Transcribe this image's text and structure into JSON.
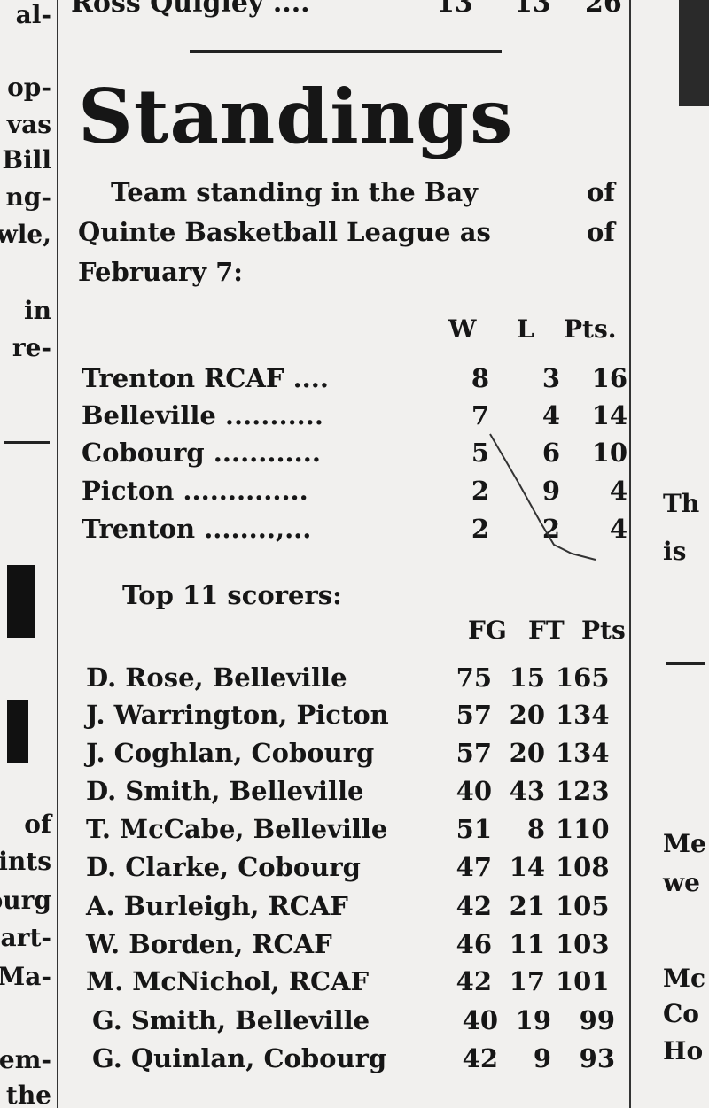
{
  "top_fragment": {
    "name": "Ross Quigley ....",
    "values": [
      "13",
      "13",
      "26"
    ]
  },
  "title": "Standings",
  "intro": {
    "line1": "Team standing in the Bay",
    "line1_end": "of",
    "line2": "Quinte Basketball League as",
    "line2_end": "of",
    "line3": "February 7:"
  },
  "standings": {
    "headers": [
      "W",
      "L",
      "Pts."
    ],
    "rows": [
      {
        "team": "Trenton RCAF ....",
        "w": "8",
        "l": "3",
        "pts": "16"
      },
      {
        "team": "Belleville ...........",
        "w": "7",
        "l": "4",
        "pts": "14"
      },
      {
        "team": "Cobourg ............",
        "w": "5",
        "l": "6",
        "pts": "10"
      },
      {
        "team": "Picton ..............",
        "w": "2",
        "l": "9",
        "pts": "4"
      },
      {
        "team": "Trenton ........,...",
        "w": "2",
        "l": "2",
        "pts": "4"
      }
    ]
  },
  "scorers": {
    "heading": "Top 11 scorers:",
    "headers": [
      "FG",
      "FT",
      "Pts"
    ],
    "rows": [
      {
        "player": "D. Rose, Belleville",
        "fg": "75",
        "ft": "15",
        "pts": "165"
      },
      {
        "player": "J. Warrington, Picton",
        "fg": "57",
        "ft": "20",
        "pts": "134"
      },
      {
        "player": "J. Coghlan, Cobourg",
        "fg": "57",
        "ft": "20",
        "pts": "134"
      },
      {
        "player": "D. Smith, Belleville",
        "fg": "40",
        "ft": "43",
        "pts": "123"
      },
      {
        "player": "T. McCabe, Belleville",
        "fg": "51",
        "ft": "8",
        "pts": "110"
      },
      {
        "player": "D. Clarke, Cobourg",
        "fg": "47",
        "ft": "14",
        "pts": "108"
      },
      {
        "player": "A. Burleigh, RCAF",
        "fg": "42",
        "ft": "21",
        "pts": "105"
      },
      {
        "player": "W. Borden, RCAF",
        "fg": "46",
        "ft": "11",
        "pts": "103"
      },
      {
        "player": "M. McNichol, RCAF",
        "fg": "42",
        "ft": "17",
        "pts": "101"
      },
      {
        "player": "G. Smith, Belleville",
        "fg": "40",
        "ft": "19",
        "pts": "99"
      },
      {
        "player": "G. Quinlan, Cobourg",
        "fg": "42",
        "ft": "9",
        "pts": "93"
      }
    ]
  },
  "left_fragments": [
    "al-",
    "op-",
    "vas",
    "Bill",
    "ng-",
    "wle,",
    "in",
    "re-",
    "of",
    "ints",
    "ourg",
    "part-",
    "Ma-",
    "lem-",
    "the"
  ],
  "right_fragments": [
    "Th",
    "is",
    "Me",
    "we",
    "Mc",
    "Co",
    "Ho"
  ],
  "ink_color": "#161616",
  "paper_color": "#f1f0ee"
}
